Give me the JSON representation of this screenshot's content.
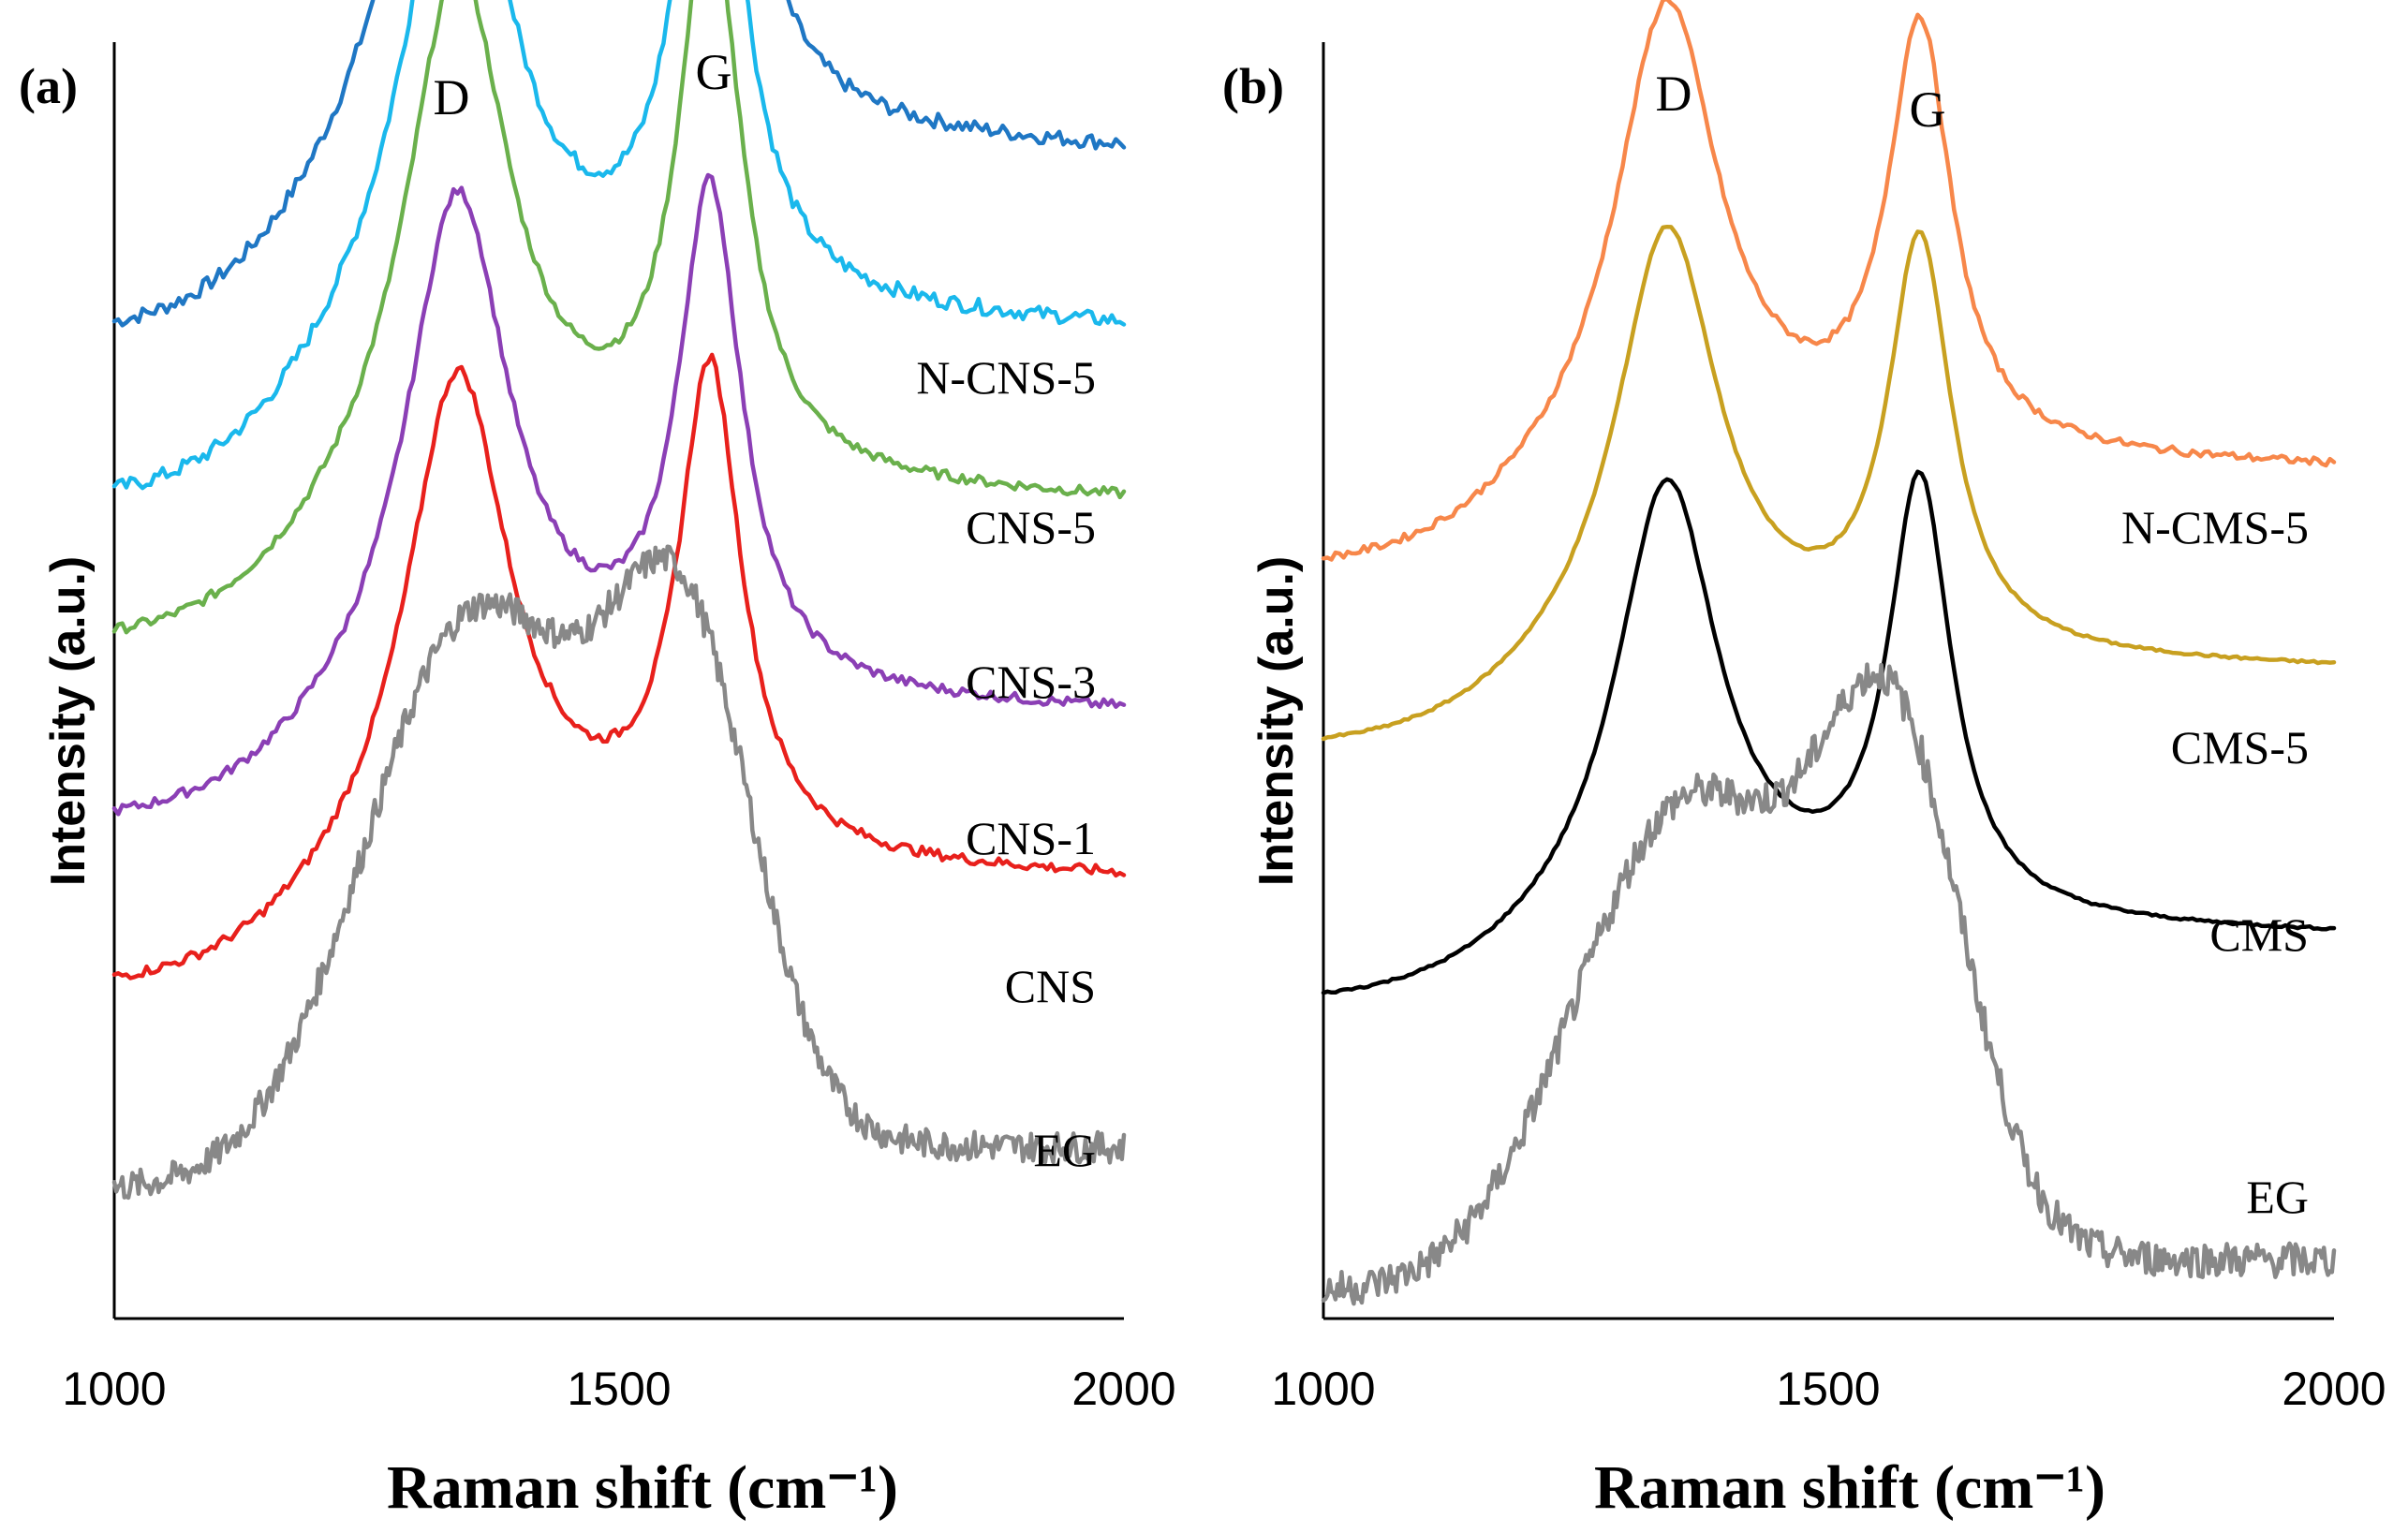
{
  "chart_data": [
    {
      "type": "line",
      "panel_label": "(a)",
      "xlabel": "Raman shift (cm⁻¹)",
      "ylabel": "Intensity (a.u.)",
      "xlim": [
        1000,
        2000
      ],
      "x_ticks": [
        "1000",
        "1500",
        "2000"
      ],
      "peak_labels": [
        {
          "text": "D",
          "x": 1340
        },
        {
          "text": "G",
          "x": 1590
        }
      ],
      "series": [
        {
          "name": "N-CNS-5",
          "color": "#1f77c4",
          "baseline": 0.76,
          "d_peak": 0.41,
          "g_peak": 0.49,
          "plateau": 0.18,
          "noise": 0.006
        },
        {
          "name": "CNS-5",
          "color": "#1ab8ec",
          "baseline": 0.63,
          "d_peak": 0.4,
          "g_peak": 0.45,
          "plateau": 0.17,
          "noise": 0.006
        },
        {
          "name": "CNS-3",
          "color": "#6ab04c",
          "baseline": 0.52,
          "d_peak": 0.41,
          "g_peak": 0.44,
          "plateau": 0.14,
          "noise": 0.004
        },
        {
          "name": "CNS-1",
          "color": "#8b3fb5",
          "baseline": 0.38,
          "d_peak": 0.4,
          "g_peak": 0.39,
          "plateau": 0.11,
          "noise": 0.004
        },
        {
          "name": "CNS",
          "color": "#e8201c",
          "baseline": 0.25,
          "d_peak": 0.39,
          "g_peak": 0.38,
          "plateau": 0.11,
          "noise": 0.004
        },
        {
          "name": "EG",
          "color": "#888888",
          "baseline": 0.1,
          "d_peak": 0.36,
          "g_peak": 0.35,
          "plateau": 0.04,
          "noise": 0.012,
          "broad": true
        }
      ]
    },
    {
      "type": "line",
      "panel_label": "(b)",
      "xlabel": "Raman shift (cm⁻¹)",
      "ylabel": "Intensity (a.u.)",
      "xlim": [
        1000,
        2000
      ],
      "x_ticks": [
        "1000",
        "1500",
        "2000"
      ],
      "peak_labels": [
        {
          "text": "D",
          "x": 1345
        },
        {
          "text": "G",
          "x": 1595
        }
      ],
      "series": [
        {
          "name": "N-CMS-5",
          "color": "#f7874a",
          "baseline": 0.58,
          "d_peak": 0.36,
          "g_peak": 0.33,
          "plateau": 0.1,
          "noise": 0.003
        },
        {
          "name": "CMS-5",
          "color": "#c8a020",
          "baseline": 0.44,
          "d_peak": 0.34,
          "g_peak": 0.32,
          "plateau": 0.08,
          "noise": 0.001
        },
        {
          "name": "CMS",
          "color": "#000000",
          "baseline": 0.24,
          "d_peak": 0.35,
          "g_peak": 0.34,
          "plateau": 0.07,
          "noise": 0.001
        },
        {
          "name": "EG",
          "color": "#888888",
          "baseline": 0.02,
          "d_peak": 0.3,
          "g_peak": 0.36,
          "plateau": 0.03,
          "noise": 0.014,
          "broad": true
        }
      ]
    }
  ]
}
